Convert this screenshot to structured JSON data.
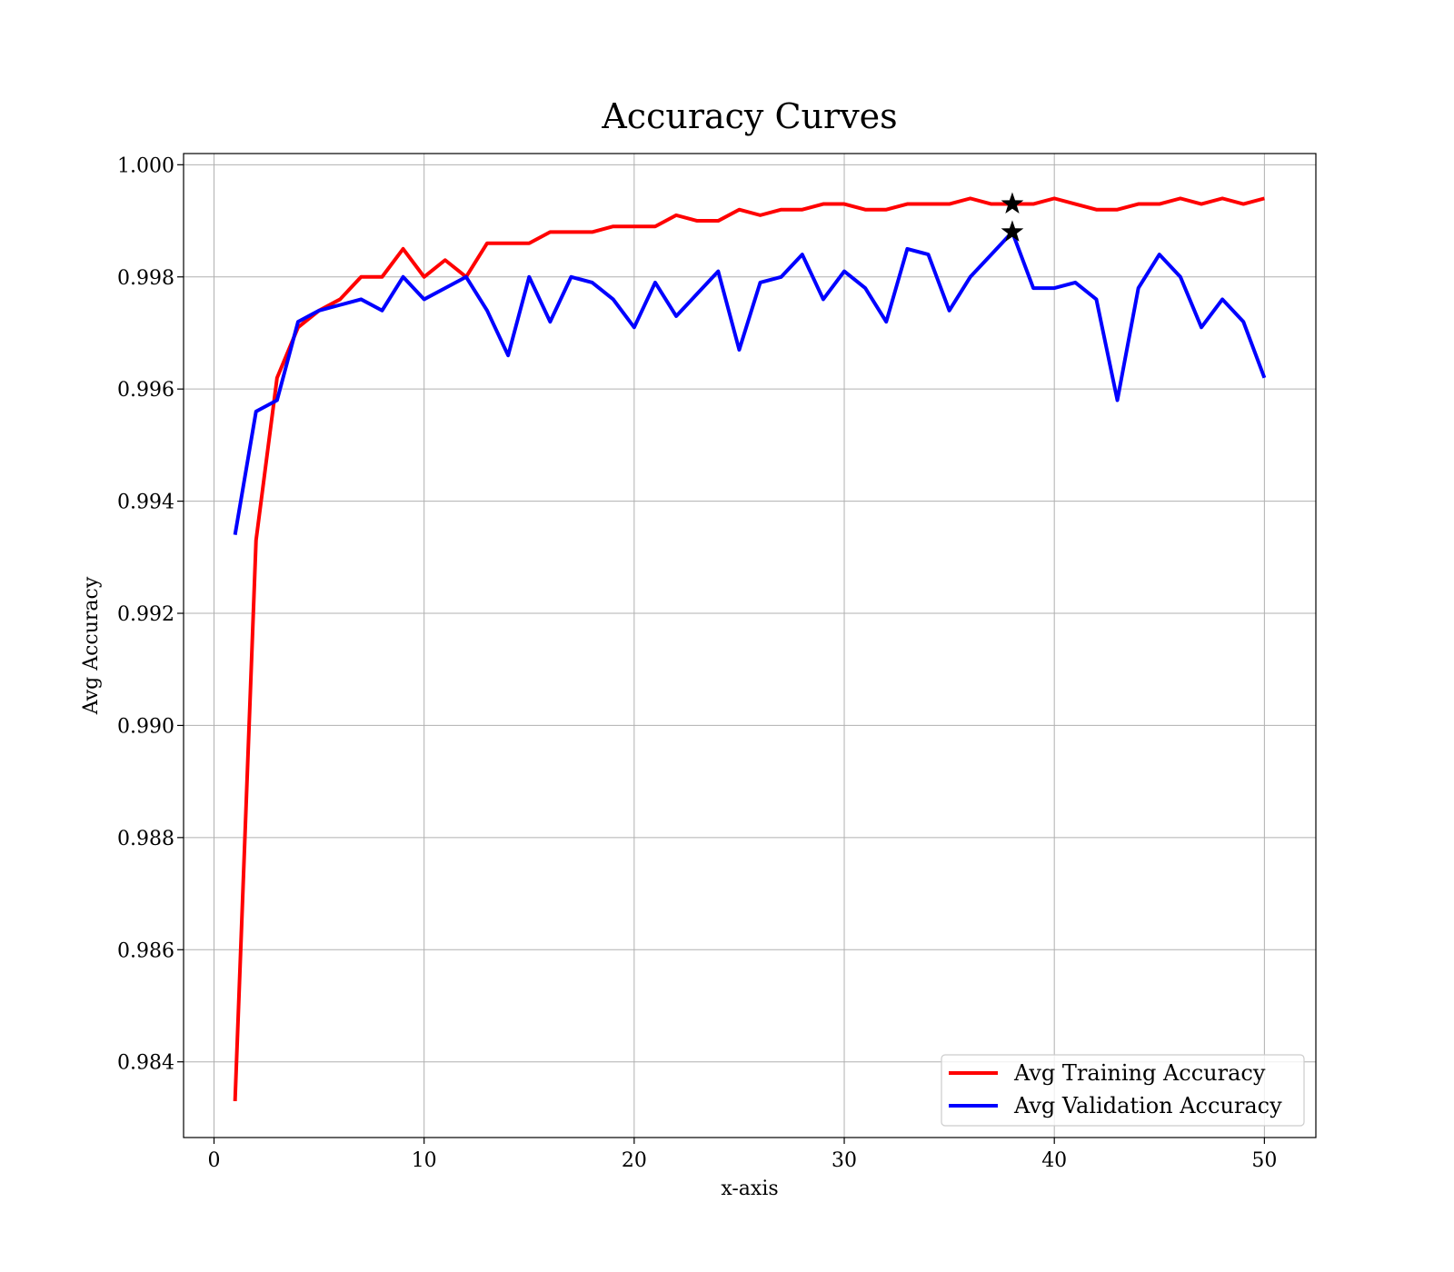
{
  "chart_data": {
    "type": "line",
    "title": "Accuracy Curves",
    "xlabel": "x-axis",
    "ylabel": "Avg Accuracy",
    "xlim": [
      -1.45,
      52.45
    ],
    "ylim": [
      0.98265,
      1.0002
    ],
    "xticks": [
      0,
      10,
      20,
      30,
      40,
      50
    ],
    "xtick_labels": [
      "0",
      "10",
      "20",
      "30",
      "40",
      "50"
    ],
    "yticks": [
      0.984,
      0.986,
      0.988,
      0.99,
      0.992,
      0.994,
      0.996,
      0.998,
      1.0
    ],
    "ytick_labels": [
      "0.984",
      "0.986",
      "0.988",
      "0.990",
      "0.992",
      "0.994",
      "0.996",
      "0.998",
      "1.000"
    ],
    "grid": true,
    "legend_position": "lower-right",
    "x": [
      1,
      2,
      3,
      4,
      5,
      6,
      7,
      8,
      9,
      10,
      11,
      12,
      13,
      14,
      15,
      16,
      17,
      18,
      19,
      20,
      21,
      22,
      23,
      24,
      25,
      26,
      27,
      28,
      29,
      30,
      31,
      32,
      33,
      34,
      35,
      36,
      37,
      38,
      39,
      40,
      41,
      42,
      43,
      44,
      45,
      46,
      47,
      48,
      49,
      50
    ],
    "series": [
      {
        "name": "Avg Training Accuracy",
        "color": "#ff0000",
        "values": [
          0.9833,
          0.9933,
          0.9962,
          0.9971,
          0.9974,
          0.9976,
          0.998,
          0.998,
          0.9985,
          0.998,
          0.9983,
          0.998,
          0.9986,
          0.9986,
          0.9986,
          0.9988,
          0.9988,
          0.9988,
          0.9989,
          0.9989,
          0.9989,
          0.9991,
          0.999,
          0.999,
          0.9992,
          0.9991,
          0.9992,
          0.9992,
          0.9993,
          0.9993,
          0.9992,
          0.9992,
          0.9993,
          0.9993,
          0.9993,
          0.9994,
          0.9993,
          0.9993,
          0.9993,
          0.9994,
          0.9993,
          0.9992,
          0.9992,
          0.9993,
          0.9993,
          0.9994,
          0.9993,
          0.9994,
          0.9993,
          0.9994
        ]
      },
      {
        "name": "Avg Validation Accuracy",
        "color": "#0000ff",
        "values": [
          0.9934,
          0.9956,
          0.9958,
          0.9972,
          0.9974,
          0.9975,
          0.9976,
          0.9974,
          0.998,
          0.9976,
          0.9978,
          0.998,
          0.9974,
          0.9966,
          0.998,
          0.9972,
          0.998,
          0.9979,
          0.9976,
          0.9971,
          0.9979,
          0.9973,
          0.9977,
          0.9981,
          0.9967,
          0.9979,
          0.998,
          0.9984,
          0.9976,
          0.9981,
          0.9978,
          0.9972,
          0.9985,
          0.9984,
          0.9974,
          0.998,
          0.9984,
          0.9988,
          0.9978,
          0.9978,
          0.9979,
          0.9976,
          0.9958,
          0.9978,
          0.9984,
          0.998,
          0.9971,
          0.9976,
          0.9972,
          0.9962
        ]
      }
    ],
    "markers": [
      {
        "symbol": "star",
        "x": 38,
        "y": 0.9993,
        "color": "#000000"
      },
      {
        "symbol": "star",
        "x": 38,
        "y": 0.9988,
        "color": "#000000"
      }
    ]
  }
}
